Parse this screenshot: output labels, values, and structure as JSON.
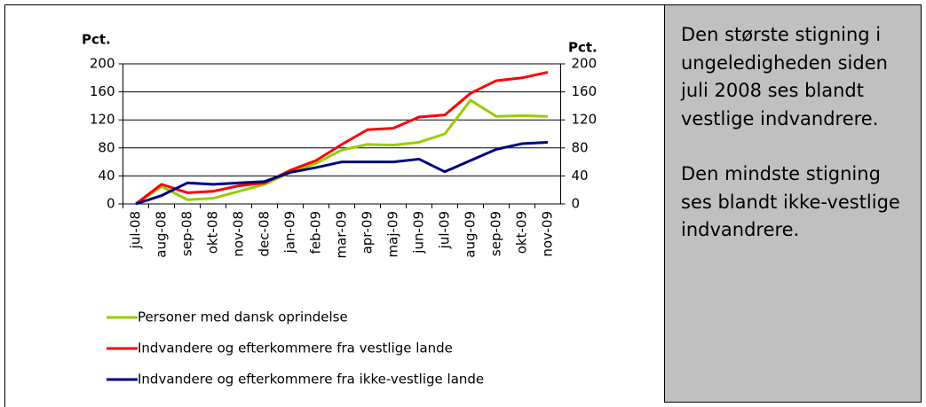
{
  "chart_data": {
    "type": "line",
    "ylabel": "Pct.",
    "y2label": "Pct.",
    "categories": [
      "jul-08",
      "aug-08",
      "sep-08",
      "okt-08",
      "nov-08",
      "dec-08",
      "jan-09",
      "feb-09",
      "mar-09",
      "apr-09",
      "maj-09",
      "jun-09",
      "jul-09",
      "aug-09",
      "sep-09",
      "okt-09",
      "nov-09"
    ],
    "series": [
      {
        "name": "Personer med dansk oprindelse",
        "color": "#99cc00",
        "values": [
          0,
          25,
          6,
          8,
          18,
          28,
          45,
          58,
          77,
          85,
          84,
          88,
          100,
          148,
          125,
          126,
          125
        ]
      },
      {
        "name": "Indvandere og efterkommere fra vestlige lande",
        "color": "#ff0000",
        "values": [
          0,
          28,
          16,
          18,
          26,
          30,
          48,
          62,
          85,
          106,
          108,
          124,
          127,
          158,
          176,
          180,
          188
        ]
      },
      {
        "name": "Indvandere og efterkommere fra ikke-vestlige lande",
        "color": "#000080",
        "values": [
          0,
          12,
          30,
          28,
          30,
          32,
          45,
          52,
          60,
          60,
          60,
          64,
          46,
          62,
          78,
          86,
          88
        ]
      }
    ],
    "ylim": [
      0,
      200
    ],
    "yticks": [
      0,
      40,
      80,
      120,
      160,
      200
    ],
    "y2lim": [
      0,
      200
    ],
    "y2ticks": [
      0,
      40,
      80,
      120,
      160,
      200
    ],
    "legend": "bottom"
  },
  "text_panel": {
    "paragraphs": [
      "Den største stigning i ungeledigheden siden juli 2008 ses blandt vestlige indvandrere.",
      "Den mindste stigning ses blandt ikke-vestlige indvandrere."
    ]
  }
}
